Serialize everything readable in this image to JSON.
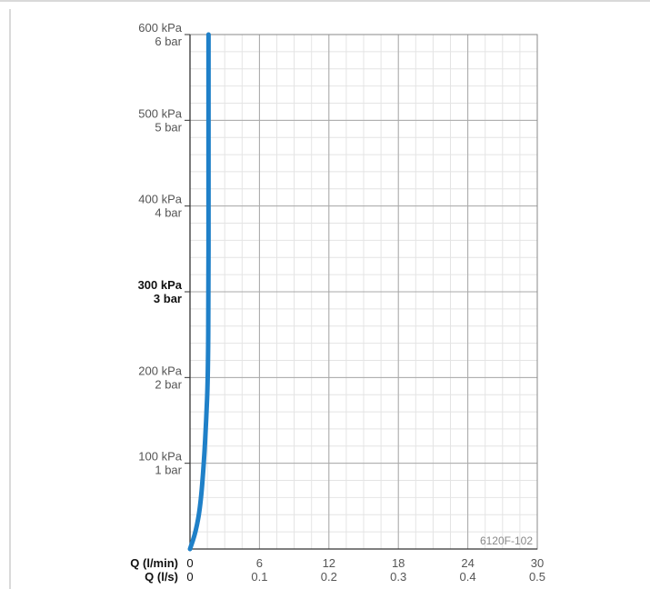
{
  "chart_data": {
    "type": "line",
    "code_label": "6120F-102",
    "x_axis_titles": [
      "Q (l/min)",
      "Q (l/s)"
    ],
    "x_ticks_lpm": [
      "0",
      "6",
      "12",
      "18",
      "24",
      "30"
    ],
    "x_ticks_lps": [
      "0",
      "0.1",
      "0.2",
      "0.3",
      "0.4",
      "0.5"
    ],
    "xlim": [
      0,
      30
    ],
    "ylim": [
      0,
      600
    ],
    "y_ticks": [
      {
        "kpa": "100 kPa",
        "bar": "1 bar",
        "value": 100,
        "bold": false
      },
      {
        "kpa": "200 kPa",
        "bar": "2 bar",
        "value": 200,
        "bold": false
      },
      {
        "kpa": "300 kPa",
        "bar": "3 bar",
        "value": 300,
        "bold": true
      },
      {
        "kpa": "400 kPa",
        "bar": "4 bar",
        "value": 400,
        "bold": false
      },
      {
        "kpa": "500 kPa",
        "bar": "5 bar",
        "value": 500,
        "bold": false
      },
      {
        "kpa": "600 kPa",
        "bar": "6 bar",
        "value": 600,
        "bold": false
      }
    ],
    "grid": true,
    "series": [
      {
        "color": "#1f80c8",
        "points": [
          [
            0,
            0
          ],
          [
            0.5,
            20
          ],
          [
            0.9,
            50
          ],
          [
            1.2,
            100
          ],
          [
            1.4,
            150
          ],
          [
            1.55,
            200
          ],
          [
            1.6,
            300
          ],
          [
            1.6,
            400
          ],
          [
            1.6,
            500
          ],
          [
            1.6,
            600
          ]
        ]
      }
    ]
  }
}
